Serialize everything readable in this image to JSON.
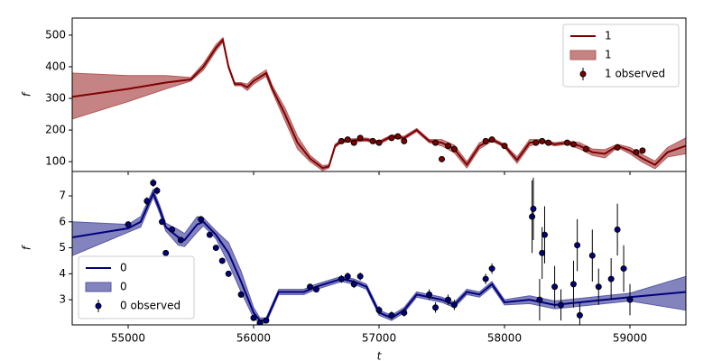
{
  "chart_data": [
    {
      "type": "line",
      "ylabel": "f",
      "legend": "upper right",
      "xlim": [
        54554,
        59446
      ],
      "ylim": [
        69,
        554
      ],
      "xticks": [
        55000,
        56000,
        57000,
        58000,
        59000
      ],
      "yticks": [
        100,
        200,
        300,
        400,
        500
      ],
      "x": [
        54554,
        55000,
        55300,
        55500,
        55600,
        55700,
        55755,
        55800,
        55850,
        55900,
        55950,
        56000,
        56100,
        56150,
        56250,
        56350,
        56450,
        56550,
        56600,
        56650,
        56700,
        56900,
        57000,
        57100,
        57200,
        57300,
        57400,
        57500,
        57600,
        57700,
        57800,
        57900,
        58000,
        58100,
        58200,
        58300,
        58400,
        58500,
        58600,
        58700,
        58800,
        58900,
        59000,
        59100,
        59200,
        59300,
        59446
      ],
      "series": [
        {
          "name": "1",
          "color": "#800000",
          "values": [
            305,
            330,
            350,
            360,
            400,
            460,
            485,
            400,
            345,
            345,
            335,
            355,
            380,
            330,
            250,
            160,
            110,
            80,
            85,
            150,
            165,
            170,
            160,
            180,
            175,
            200,
            165,
            160,
            140,
            90,
            150,
            170,
            150,
            105,
            160,
            165,
            155,
            160,
            150,
            130,
            125,
            150,
            135,
            110,
            90,
            130,
            150
          ]
        }
      ],
      "bands": [
        {
          "name": "1",
          "color": "#b35a5a",
          "lower": [
            235,
            290,
            330,
            355,
            390,
            450,
            478,
            395,
            340,
            340,
            325,
            345,
            370,
            320,
            230,
            140,
            100,
            72,
            80,
            145,
            160,
            165,
            155,
            175,
            170,
            195,
            160,
            150,
            128,
            80,
            140,
            165,
            145,
            95,
            150,
            160,
            150,
            155,
            140,
            120,
            112,
            145,
            125,
            98,
            78,
            115,
            125
          ],
          "upper": [
            380,
            372,
            372,
            366,
            410,
            470,
            492,
            405,
            350,
            350,
            345,
            365,
            390,
            340,
            270,
            180,
            120,
            88,
            90,
            155,
            170,
            175,
            165,
            185,
            180,
            205,
            170,
            170,
            152,
            100,
            160,
            175,
            155,
            115,
            170,
            170,
            160,
            165,
            160,
            140,
            138,
            155,
            145,
            122,
            102,
            145,
            175
          ]
        }
      ],
      "observed": [
        {
          "name": "1 observed",
          "color": "#800000",
          "x": [
            56700,
            56750,
            56800,
            56850,
            56950,
            57000,
            57100,
            57150,
            57200,
            57450,
            57500,
            57550,
            57600,
            57850,
            57900,
            58000,
            58250,
            58300,
            58350,
            58500,
            58550,
            58650,
            58900,
            59050,
            59100
          ],
          "values": [
            165,
            170,
            160,
            175,
            165,
            160,
            175,
            180,
            165,
            160,
            108,
            150,
            140,
            165,
            170,
            150,
            160,
            165,
            160,
            160,
            155,
            140,
            145,
            130,
            135
          ],
          "errors": [
            3,
            3,
            3,
            3,
            3,
            3,
            3,
            3,
            3,
            3,
            3,
            3,
            3,
            3,
            3,
            3,
            3,
            3,
            3,
            3,
            3,
            3,
            3,
            3,
            3
          ]
        }
      ]
    },
    {
      "type": "line",
      "ylabel": "f",
      "xlabel": "t",
      "legend": "lower left",
      "xlim": [
        54554,
        59446
      ],
      "ylim": [
        2.03,
        7.94
      ],
      "xticks": [
        55000,
        56000,
        57000,
        58000,
        59000
      ],
      "yticks": [
        3,
        4,
        5,
        6,
        7
      ],
      "x": [
        54554,
        55000,
        55100,
        55200,
        55250,
        55300,
        55400,
        55450,
        55550,
        55600,
        55700,
        55800,
        55900,
        56000,
        56050,
        56100,
        56200,
        56400,
        56500,
        56700,
        56800,
        56900,
        57000,
        57100,
        57200,
        57300,
        57500,
        57600,
        57700,
        57800,
        57900,
        58000,
        58200,
        58400,
        58600,
        58800,
        59000,
        59446
      ],
      "series": [
        {
          "name": "0",
          "color": "#000080",
          "values": [
            5.4,
            5.75,
            6.0,
            7.1,
            6.5,
            5.8,
            5.4,
            5.3,
            5.9,
            6.0,
            5.5,
            4.8,
            3.7,
            2.5,
            2.2,
            2.2,
            3.3,
            3.3,
            3.5,
            3.8,
            3.7,
            3.5,
            2.5,
            2.3,
            2.6,
            3.2,
            3.0,
            2.8,
            3.3,
            3.2,
            3.6,
            2.9,
            3.0,
            2.8,
            2.9,
            3.0,
            3.1,
            3.3
          ]
        }
      ],
      "bands": [
        {
          "name": "0",
          "color": "#5a5aa8",
          "lower": [
            4.7,
            5.6,
            5.8,
            6.95,
            6.35,
            5.65,
            5.1,
            5.05,
            5.6,
            5.85,
            5.35,
            4.4,
            3.3,
            2.3,
            2.1,
            2.1,
            3.2,
            3.2,
            3.4,
            3.7,
            3.6,
            3.4,
            2.4,
            2.2,
            2.5,
            3.1,
            2.9,
            2.7,
            3.2,
            3.1,
            3.5,
            2.8,
            2.85,
            2.65,
            2.75,
            2.85,
            2.95,
            2.6
          ],
          "upper": [
            6.0,
            5.9,
            6.2,
            7.25,
            6.65,
            5.95,
            5.7,
            5.55,
            6.2,
            6.15,
            5.65,
            5.2,
            4.1,
            2.7,
            2.3,
            2.3,
            3.4,
            3.4,
            3.6,
            3.9,
            3.8,
            3.6,
            2.6,
            2.4,
            2.7,
            3.3,
            3.1,
            2.9,
            3.4,
            3.3,
            3.7,
            3.0,
            3.15,
            2.95,
            3.05,
            3.15,
            3.25,
            3.9
          ]
        }
      ],
      "observed": [
        {
          "name": "0 observed",
          "color": "#000080",
          "x": [
            55000,
            55150,
            55200,
            55230,
            55270,
            55300,
            55350,
            55420,
            55580,
            55650,
            55700,
            55750,
            55800,
            55900,
            56000,
            56050,
            56100,
            56450,
            56500,
            56700,
            56750,
            56800,
            56850,
            57000,
            57100,
            57200,
            57400,
            57450,
            57550,
            57600,
            57850,
            57900,
            58220,
            58230,
            58280,
            58300,
            58320,
            58400,
            58450,
            58550,
            58580,
            58600,
            58700,
            58750,
            58850,
            58900,
            58950,
            59000
          ],
          "values": [
            5.9,
            6.8,
            7.5,
            7.2,
            6.0,
            4.8,
            5.7,
            5.3,
            6.1,
            5.5,
            5.0,
            4.5,
            4.0,
            3.2,
            2.3,
            2.1,
            2.2,
            3.5,
            3.4,
            3.8,
            3.9,
            3.6,
            3.9,
            2.6,
            2.4,
            2.5,
            3.2,
            2.7,
            3.0,
            2.8,
            3.8,
            4.2,
            6.2,
            6.5,
            3.0,
            4.8,
            5.5,
            3.5,
            2.8,
            3.6,
            5.1,
            2.4,
            4.7,
            3.5,
            3.8,
            5.7,
            4.2,
            3.0
          ],
          "errors": [
            0.1,
            0.15,
            0.15,
            0.15,
            0.1,
            0.1,
            0.1,
            0.1,
            0.1,
            0.1,
            0.1,
            0.1,
            0.1,
            0.1,
            0.1,
            0.1,
            0.1,
            0.1,
            0.1,
            0.15,
            0.15,
            0.15,
            0.15,
            0.15,
            0.15,
            0.15,
            0.2,
            0.2,
            0.2,
            0.2,
            0.2,
            0.2,
            1.4,
            1.2,
            0.8,
            1.0,
            1.1,
            0.8,
            0.6,
            0.9,
            1.0,
            0.5,
            1.0,
            0.7,
            0.8,
            1.0,
            0.9,
            0.6
          ]
        }
      ]
    }
  ]
}
